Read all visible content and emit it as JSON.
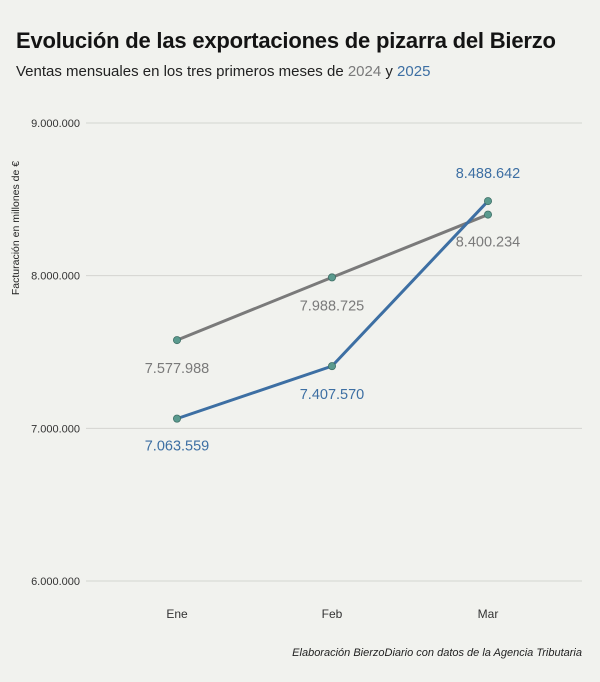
{
  "title": "Evolución de las exportaciones de pizarra del Bierzo",
  "subtitle": {
    "prefix": "Ventas mensuales en los tres primeros meses de ",
    "year_a": "2024",
    "joiner": " y ",
    "year_b": "2025"
  },
  "source": "Elaboración BierzoDiario con datos de la Agencia Tributaria",
  "colors": {
    "series_2024": "#7a7a7a",
    "series_2025": "#3d6fa3",
    "point": "#5a9a8e",
    "grid": "#d4d5d0",
    "background": "#f1f2ee"
  },
  "chart_data": {
    "type": "line",
    "categories": [
      "Ene",
      "Feb",
      "Mar"
    ],
    "ylabel": "Facturación en millones de €",
    "ylim": [
      6000000,
      9000000
    ],
    "yticks": [
      6000000,
      7000000,
      8000000,
      9000000
    ],
    "ytick_labels": [
      "6.000.000",
      "7.000.000",
      "8.000.000",
      "9.000.000"
    ],
    "grid": true,
    "series": [
      {
        "name": "2024",
        "values": [
          7577988,
          7988725,
          8400234
        ],
        "labels": [
          "7.577.988",
          "7.988.725",
          "8.400.234"
        ]
      },
      {
        "name": "2025",
        "values": [
          7063559,
          7407570,
          8488642
        ],
        "labels": [
          "7.063.559",
          "7.407.570",
          "8.488.642"
        ]
      }
    ]
  }
}
